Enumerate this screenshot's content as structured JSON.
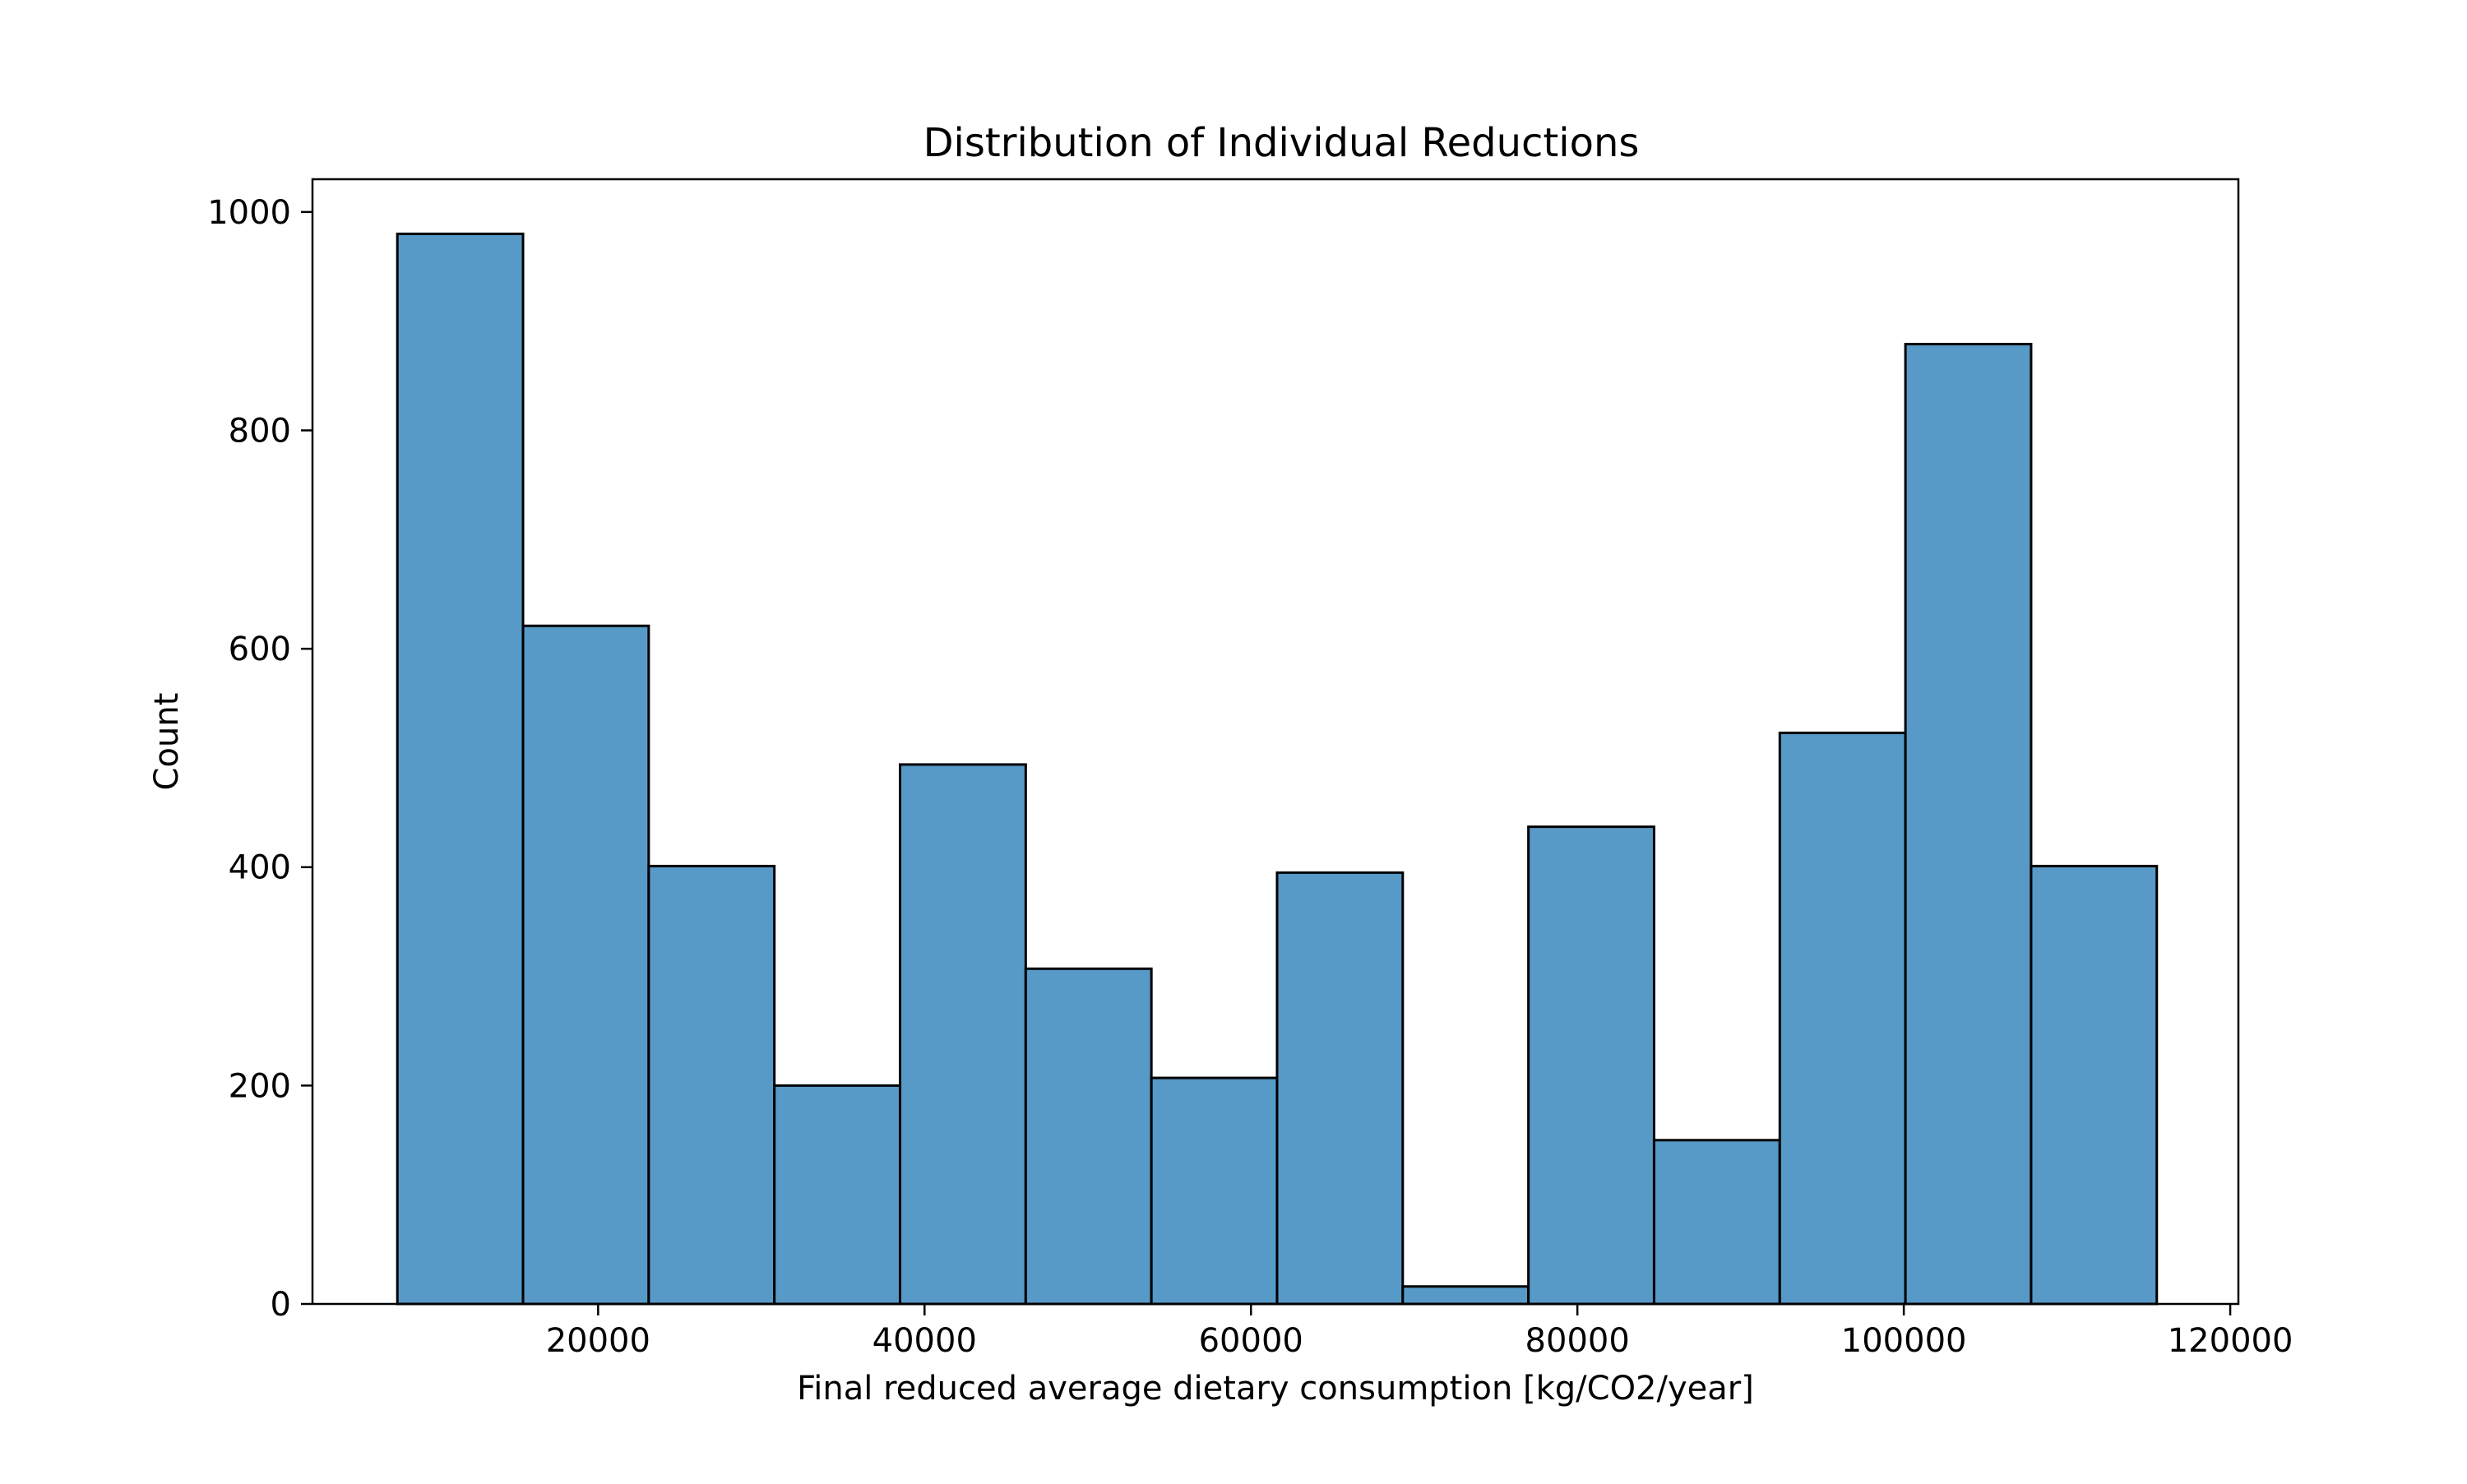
{
  "chart_data": {
    "type": "bar",
    "title": "Distribution of Individual Reductions",
    "xlabel": "Final reduced average dietary consumption [kg/CO2/year]",
    "ylabel": "Count",
    "xlim": [
      2500,
      120500
    ],
    "ylim": [
      0,
      1030
    ],
    "xticks": [
      20000,
      40000,
      60000,
      80000,
      100000,
      120000
    ],
    "yticks": [
      0,
      200,
      400,
      600,
      800,
      1000
    ],
    "bin_edges": [
      7700,
      15400,
      23100,
      30800,
      38500,
      46200,
      53900,
      61600,
      69300,
      77000,
      84700,
      92400,
      100100,
      107800,
      115500
    ],
    "values": [
      980,
      621,
      401,
      200,
      494,
      307,
      207,
      395,
      16,
      437,
      150,
      523,
      879,
      401
    ],
    "bar_color": "#5799c7",
    "edge_color": "#000000",
    "grid": false
  }
}
